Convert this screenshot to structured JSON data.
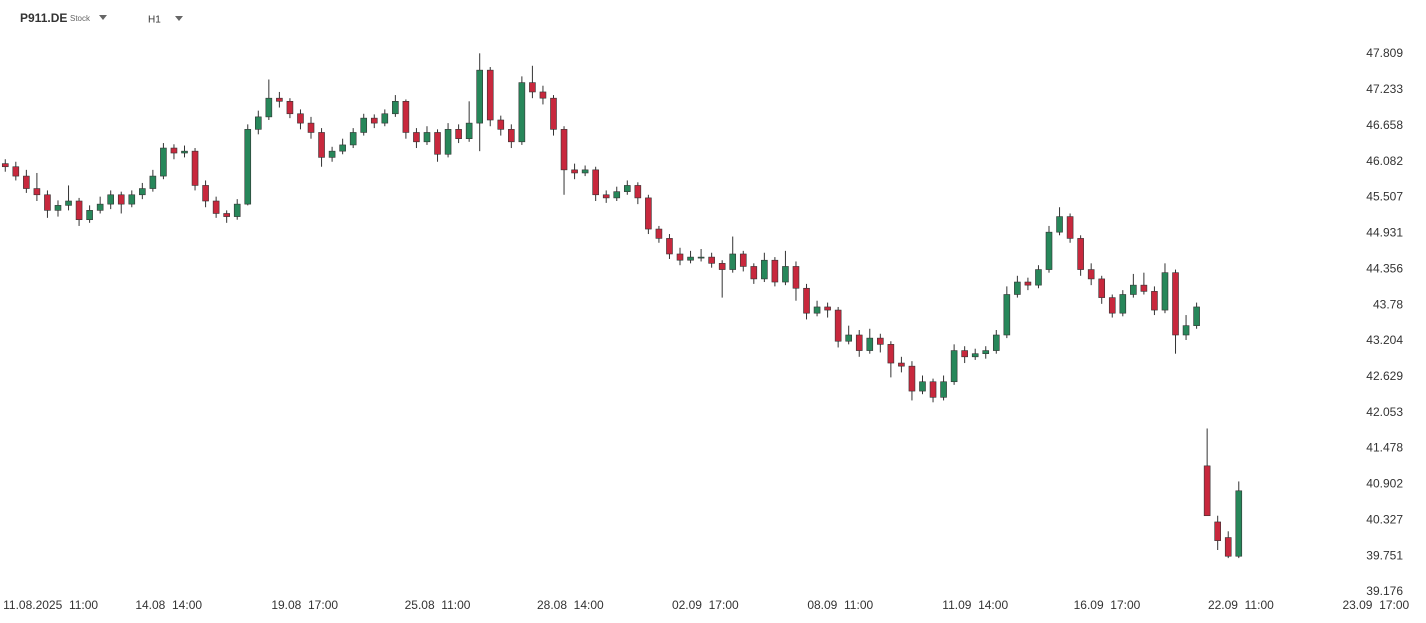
{
  "chart_data": {
    "type": "candlestick",
    "title": "P911.DE",
    "subtitle": "Stock",
    "timeframe": "H1",
    "x": [
      0,
      1,
      2,
      3,
      4,
      5,
      6,
      7,
      8,
      9,
      10,
      11,
      12,
      13,
      14,
      15,
      16,
      17,
      18,
      19,
      20,
      21,
      22,
      23,
      24,
      25,
      26,
      27,
      28,
      29,
      30,
      31,
      32,
      33,
      34,
      35,
      36,
      37,
      38,
      39,
      40,
      41,
      42,
      43,
      44,
      45,
      46,
      47,
      48,
      49,
      50,
      51,
      52,
      53,
      54,
      55,
      56,
      57,
      58,
      59,
      60,
      61,
      62,
      63,
      64,
      65,
      66,
      67,
      68,
      69,
      70,
      71,
      72,
      73,
      74,
      75,
      76,
      77,
      78,
      79,
      80,
      81,
      82,
      83,
      84,
      85,
      86,
      87,
      88,
      89,
      90,
      91,
      92,
      93,
      94,
      95,
      96,
      97,
      98,
      99,
      100,
      101,
      102,
      103,
      104,
      105,
      106,
      107,
      108,
      109,
      110,
      111,
      112,
      113,
      114,
      115,
      116,
      117
    ],
    "series": [
      {
        "up_color": "#27875a",
        "down_color": "#c8283d",
        "values": [
          [
            46.05,
            46.12,
            45.92,
            46.0
          ],
          [
            46.0,
            46.08,
            45.78,
            45.85
          ],
          [
            45.85,
            45.95,
            45.58,
            45.65
          ],
          [
            45.65,
            45.9,
            45.45,
            45.55
          ],
          [
            45.55,
            45.62,
            45.18,
            45.3
          ],
          [
            45.3,
            45.46,
            45.2,
            45.38
          ],
          [
            45.38,
            45.7,
            45.3,
            45.45
          ],
          [
            45.45,
            45.5,
            45.05,
            45.15
          ],
          [
            45.15,
            45.38,
            45.1,
            45.3
          ],
          [
            45.3,
            45.52,
            45.25,
            45.4
          ],
          [
            45.4,
            45.62,
            45.32,
            45.55
          ],
          [
            45.55,
            45.6,
            45.25,
            45.4
          ],
          [
            45.4,
            45.62,
            45.35,
            45.55
          ],
          [
            45.55,
            45.74,
            45.48,
            45.65
          ],
          [
            45.65,
            45.95,
            45.6,
            45.85
          ],
          [
            45.85,
            46.38,
            45.8,
            46.3
          ],
          [
            46.3,
            46.36,
            46.12,
            46.22
          ],
          [
            46.22,
            46.34,
            46.15,
            46.25
          ],
          [
            46.25,
            46.3,
            45.62,
            45.7
          ],
          [
            45.7,
            45.78,
            45.35,
            45.45
          ],
          [
            45.45,
            45.52,
            45.18,
            45.25
          ],
          [
            45.25,
            45.3,
            45.1,
            45.2
          ],
          [
            45.2,
            45.48,
            45.15,
            45.4
          ],
          [
            45.4,
            46.68,
            45.38,
            46.6
          ],
          [
            46.6,
            46.9,
            46.52,
            46.8
          ],
          [
            46.8,
            47.4,
            46.75,
            47.1
          ],
          [
            47.1,
            47.2,
            46.95,
            47.05
          ],
          [
            47.05,
            47.1,
            46.78,
            46.85
          ],
          [
            46.85,
            46.92,
            46.6,
            46.7
          ],
          [
            46.7,
            46.8,
            46.45,
            46.55
          ],
          [
            46.55,
            46.62,
            46.0,
            46.15
          ],
          [
            46.15,
            46.32,
            46.08,
            46.25
          ],
          [
            46.25,
            46.45,
            46.2,
            46.35
          ],
          [
            46.35,
            46.62,
            46.3,
            46.55
          ],
          [
            46.55,
            46.85,
            46.5,
            46.78
          ],
          [
            46.78,
            46.84,
            46.62,
            46.7
          ],
          [
            46.7,
            46.92,
            46.65,
            46.85
          ],
          [
            46.85,
            47.15,
            46.8,
            47.05
          ],
          [
            47.05,
            47.08,
            46.45,
            46.55
          ],
          [
            46.55,
            46.62,
            46.3,
            46.4
          ],
          [
            46.4,
            46.65,
            46.35,
            46.55
          ],
          [
            46.55,
            46.6,
            46.08,
            46.2
          ],
          [
            46.2,
            46.7,
            46.15,
            46.6
          ],
          [
            46.6,
            46.68,
            46.38,
            46.45
          ],
          [
            46.45,
            47.05,
            46.4,
            46.7
          ],
          [
            46.7,
            47.82,
            46.25,
            47.55
          ],
          [
            47.55,
            47.6,
            46.65,
            46.75
          ],
          [
            46.75,
            46.82,
            46.5,
            46.6
          ],
          [
            46.6,
            46.68,
            46.3,
            46.4
          ],
          [
            46.4,
            47.45,
            46.35,
            47.35
          ],
          [
            47.35,
            47.62,
            47.1,
            47.2
          ],
          [
            47.2,
            47.3,
            47.0,
            47.1
          ],
          [
            47.1,
            47.15,
            46.5,
            46.6
          ],
          [
            46.6,
            46.65,
            45.55,
            45.95
          ],
          [
            45.95,
            46.05,
            45.8,
            45.9
          ],
          [
            45.9,
            46.02,
            45.85,
            45.95
          ],
          [
            45.95,
            46.0,
            45.45,
            45.55
          ],
          [
            45.55,
            45.62,
            45.42,
            45.5
          ],
          [
            45.5,
            45.68,
            45.45,
            45.6
          ],
          [
            45.6,
            45.78,
            45.55,
            45.7
          ],
          [
            45.7,
            45.75,
            45.4,
            45.5
          ],
          [
            45.5,
            45.55,
            44.92,
            45.0
          ],
          [
            45.0,
            45.05,
            44.78,
            44.85
          ],
          [
            44.85,
            44.92,
            44.52,
            44.6
          ],
          [
            44.6,
            44.7,
            44.42,
            44.5
          ],
          [
            44.5,
            44.65,
            44.45,
            44.55
          ],
          [
            44.55,
            44.68,
            44.48,
            44.55
          ],
          [
            44.55,
            44.62,
            44.38,
            44.45
          ],
          [
            44.45,
            44.5,
            43.9,
            44.35
          ],
          [
            44.35,
            44.88,
            44.3,
            44.6
          ],
          [
            44.6,
            44.65,
            44.32,
            44.4
          ],
          [
            44.4,
            44.45,
            44.12,
            44.2
          ],
          [
            44.2,
            44.62,
            44.15,
            44.5
          ],
          [
            44.5,
            44.55,
            44.08,
            44.15
          ],
          [
            44.15,
            44.65,
            44.1,
            44.4
          ],
          [
            44.4,
            44.48,
            43.85,
            44.05
          ],
          [
            44.05,
            44.12,
            43.55,
            43.65
          ],
          [
            43.65,
            43.85,
            43.6,
            43.75
          ],
          [
            43.75,
            43.82,
            43.58,
            43.7
          ],
          [
            43.7,
            43.75,
            43.1,
            43.2
          ],
          [
            43.2,
            43.45,
            43.15,
            43.3
          ],
          [
            43.3,
            43.38,
            42.95,
            43.05
          ],
          [
            43.05,
            43.4,
            43.0,
            43.25
          ],
          [
            43.25,
            43.32,
            43.02,
            43.15
          ],
          [
            43.15,
            43.2,
            42.62,
            42.85
          ],
          [
            42.85,
            42.95,
            42.7,
            42.8
          ],
          [
            42.8,
            42.88,
            42.25,
            42.4
          ],
          [
            42.4,
            42.65,
            42.35,
            42.55
          ],
          [
            42.55,
            42.6,
            42.22,
            42.3
          ],
          [
            42.3,
            42.65,
            42.25,
            42.55
          ],
          [
            42.55,
            43.15,
            42.5,
            43.05
          ],
          [
            43.05,
            43.12,
            42.85,
            42.95
          ],
          [
            42.95,
            43.08,
            42.9,
            43.0
          ],
          [
            43.0,
            43.12,
            42.92,
            43.05
          ],
          [
            43.05,
            43.38,
            43.0,
            43.3
          ],
          [
            43.3,
            44.08,
            43.25,
            43.95
          ],
          [
            43.95,
            44.25,
            43.9,
            44.15
          ],
          [
            44.15,
            44.22,
            44.02,
            44.1
          ],
          [
            44.1,
            44.42,
            44.05,
            44.35
          ],
          [
            44.35,
            45.05,
            44.3,
            44.95
          ],
          [
            44.95,
            45.35,
            44.9,
            45.2
          ],
          [
            45.2,
            45.25,
            44.78,
            44.85
          ],
          [
            44.85,
            44.9,
            44.25,
            44.35
          ],
          [
            44.35,
            44.45,
            44.1,
            44.2
          ],
          [
            44.2,
            44.25,
            43.8,
            43.9
          ],
          [
            43.9,
            43.95,
            43.58,
            43.65
          ],
          [
            43.65,
            44.02,
            43.6,
            43.95
          ],
          [
            43.95,
            44.28,
            43.9,
            44.1
          ],
          [
            44.1,
            44.3,
            43.95,
            44.0
          ],
          [
            44.0,
            44.08,
            43.62,
            43.7
          ],
          [
            43.7,
            44.45,
            43.65,
            44.3
          ],
          [
            44.3,
            44.35,
            43.0,
            43.3
          ],
          [
            43.3,
            43.62,
            43.22,
            43.45
          ],
          [
            43.45,
            43.82,
            43.4,
            43.75
          ],
          [
            41.2,
            41.8,
            40.4,
            40.4
          ],
          [
            40.3,
            40.4,
            39.85,
            40.0
          ],
          [
            40.05,
            40.15,
            39.72,
            39.75
          ],
          [
            39.75,
            40.95,
            39.72,
            40.8
          ]
        ]
      }
    ],
    "xlim": [
      -0.5,
      134
    ],
    "xticks": [
      {
        "value": 4.3,
        "label": "11.08.2025  11:00"
      },
      {
        "value": 15.5,
        "label": "14.08  14:00"
      },
      {
        "value": 28.4,
        "label": "19.08  17:00"
      },
      {
        "value": 41,
        "label": "25.08  11:00"
      },
      {
        "value": 53.6,
        "label": "28.08  14:00"
      },
      {
        "value": 66.4,
        "label": "02.09  17:00"
      },
      {
        "value": 79.2,
        "label": "08.09  11:00"
      },
      {
        "value": 92,
        "label": "11.09  14:00"
      },
      {
        "value": 104.5,
        "label": "16.09  17:00"
      },
      {
        "value": 117.2,
        "label": "22.09  11:00"
      },
      {
        "value": 130,
        "label": "23.09  17:00"
      }
    ],
    "ylim": [
      39.176,
      47.809
    ],
    "yticks": [
      47.809,
      47.233,
      46.658,
      46.082,
      45.507,
      44.931,
      44.356,
      43.78,
      {
        "value": 43.204,
        "label": "43.204"
      },
      42.629,
      42.053,
      41.478,
      40.902,
      40.327,
      39.751,
      39.176
    ]
  }
}
